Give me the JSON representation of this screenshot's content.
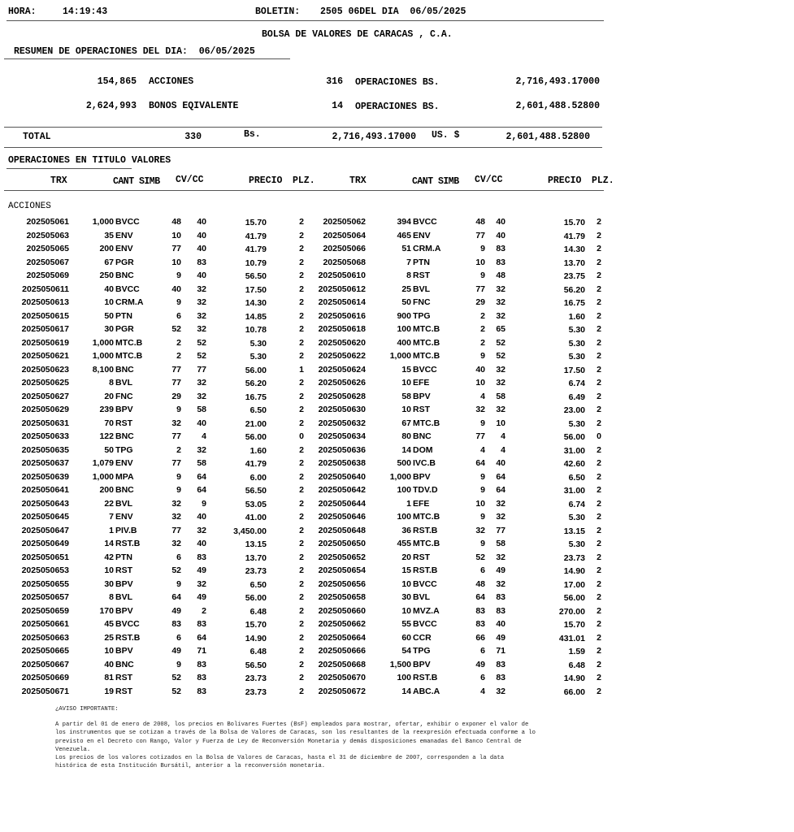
{
  "header": {
    "hora_label": "HORA:",
    "hora": "14:19:43",
    "boletin_label": "BOLETIN:",
    "boletin": "2505 06DEL DIA  06/05/2025"
  },
  "title": "BOLSA DE VALORES DE CARACAS , C.A.",
  "resumen": "RESUMEN DE OPERACIONES DEL DIA:  06/05/2025",
  "summary": [
    {
      "qty": "154,865",
      "type": "ACCIONES",
      "ops": "316",
      "ops_label": "OPERACIONES BS.",
      "amount": "2,716,493.17000"
    },
    {
      "qty": "2,624,993",
      "type": "BONOS EQIVALENTE",
      "ops": "14",
      "ops_label": "OPERACIONES BS.",
      "amount": "2,601,488.52800"
    }
  ],
  "total": {
    "label": "TOTAL",
    "ops": "330",
    "bs_label": "Bs.",
    "bs": "2,716,493.17000",
    "us_label": "US. $",
    "us": "2,601,488.52800"
  },
  "section": "OPERACIONES EN TITULO VALORES",
  "columns": {
    "trx": "TRX",
    "cant_simb": "CANT SIMB",
    "cv_cc": "CV/CC",
    "precio": "PRECIO",
    "plz": "PLZ."
  },
  "group": "ACCIONES",
  "rows": [
    [
      [
        "202505061",
        "1,000",
        "BVCC",
        "48",
        "40",
        "15.70",
        "2"
      ],
      [
        "202505062",
        "394",
        "BVCC",
        "48",
        "40",
        "15.70",
        "2"
      ]
    ],
    [
      [
        "202505063",
        "35",
        "ENV",
        "10",
        "40",
        "41.79",
        "2"
      ],
      [
        "202505064",
        "465",
        "ENV",
        "77",
        "40",
        "41.79",
        "2"
      ]
    ],
    [
      [
        "202505065",
        "200",
        "ENV",
        "77",
        "40",
        "41.79",
        "2"
      ],
      [
        "202505066",
        "51",
        "CRM.A",
        "9",
        "83",
        "14.30",
        "2"
      ]
    ],
    [
      [
        "202505067",
        "67",
        "PGR",
        "10",
        "83",
        "10.79",
        "2"
      ],
      [
        "202505068",
        "7",
        "PTN",
        "10",
        "83",
        "13.70",
        "2"
      ]
    ],
    [
      [
        "202505069",
        "250",
        "BNC",
        "9",
        "40",
        "56.50",
        "2"
      ],
      [
        "2025050610",
        "8",
        "RST",
        "9",
        "48",
        "23.75",
        "2"
      ]
    ],
    [
      [
        "2025050611",
        "40",
        "BVCC",
        "40",
        "32",
        "17.50",
        "2"
      ],
      [
        "2025050612",
        "25",
        "BVL",
        "77",
        "32",
        "56.20",
        "2"
      ]
    ],
    [
      [
        "2025050613",
        "10",
        "CRM.A",
        "9",
        "32",
        "14.30",
        "2"
      ],
      [
        "2025050614",
        "50",
        "FNC",
        "29",
        "32",
        "16.75",
        "2"
      ]
    ],
    [
      [
        "2025050615",
        "50",
        "PTN",
        "6",
        "32",
        "14.85",
        "2"
      ],
      [
        "2025050616",
        "900",
        "TPG",
        "2",
        "32",
        "1.60",
        "2"
      ]
    ],
    [
      [
        "2025050617",
        "30",
        "PGR",
        "52",
        "32",
        "10.78",
        "2"
      ],
      [
        "2025050618",
        "100",
        "MTC.B",
        "2",
        "65",
        "5.30",
        "2"
      ]
    ],
    [
      [
        "2025050619",
        "1,000",
        "MTC.B",
        "2",
        "52",
        "5.30",
        "2"
      ],
      [
        "2025050620",
        "400",
        "MTC.B",
        "2",
        "52",
        "5.30",
        "2"
      ]
    ],
    [
      [
        "2025050621",
        "1,000",
        "MTC.B",
        "2",
        "52",
        "5.30",
        "2"
      ],
      [
        "2025050622",
        "1,000",
        "MTC.B",
        "9",
        "52",
        "5.30",
        "2"
      ]
    ],
    [
      [
        "2025050623",
        "8,100",
        "BNC",
        "77",
        "77",
        "56.00",
        "1"
      ],
      [
        "2025050624",
        "15",
        "BVCC",
        "40",
        "32",
        "17.50",
        "2"
      ]
    ],
    [
      [
        "2025050625",
        "8",
        "BVL",
        "77",
        "32",
        "56.20",
        "2"
      ],
      [
        "2025050626",
        "10",
        "EFE",
        "10",
        "32",
        "6.74",
        "2"
      ]
    ],
    [
      [
        "2025050627",
        "20",
        "FNC",
        "29",
        "32",
        "16.75",
        "2"
      ],
      [
        "2025050628",
        "58",
        "BPV",
        "4",
        "58",
        "6.49",
        "2"
      ]
    ],
    [
      [
        "2025050629",
        "239",
        "BPV",
        "9",
        "58",
        "6.50",
        "2"
      ],
      [
        "2025050630",
        "10",
        "RST",
        "32",
        "32",
        "23.00",
        "2"
      ]
    ],
    [
      [
        "2025050631",
        "70",
        "RST",
        "32",
        "40",
        "21.00",
        "2"
      ],
      [
        "2025050632",
        "67",
        "MTC.B",
        "9",
        "10",
        "5.30",
        "2"
      ]
    ],
    [
      [
        "2025050633",
        "122",
        "BNC",
        "77",
        "4",
        "56.00",
        "0"
      ],
      [
        "2025050634",
        "80",
        "BNC",
        "77",
        "4",
        "56.00",
        "0"
      ]
    ],
    [
      [
        "2025050635",
        "50",
        "TPG",
        "2",
        "32",
        "1.60",
        "2"
      ],
      [
        "2025050636",
        "14",
        "DOM",
        "4",
        "4",
        "31.00",
        "2"
      ]
    ],
    [
      [
        "2025050637",
        "1,079",
        "ENV",
        "77",
        "58",
        "41.79",
        "2"
      ],
      [
        "2025050638",
        "500",
        "IVC.B",
        "64",
        "40",
        "42.60",
        "2"
      ]
    ],
    [
      [
        "2025050639",
        "1,000",
        "MPA",
        "9",
        "64",
        "6.00",
        "2"
      ],
      [
        "2025050640",
        "1,000",
        "BPV",
        "9",
        "64",
        "6.50",
        "2"
      ]
    ],
    [
      [
        "2025050641",
        "200",
        "BNC",
        "9",
        "64",
        "56.50",
        "2"
      ],
      [
        "2025050642",
        "100",
        "TDV.D",
        "9",
        "64",
        "31.00",
        "2"
      ]
    ],
    [
      [
        "2025050643",
        "22",
        "BVL",
        "32",
        "9",
        "53.05",
        "2"
      ],
      [
        "2025050644",
        "1",
        "EFE",
        "10",
        "32",
        "6.74",
        "2"
      ]
    ],
    [
      [
        "2025050645",
        "7",
        "ENV",
        "32",
        "40",
        "41.00",
        "2"
      ],
      [
        "2025050646",
        "100",
        "MTC.B",
        "9",
        "32",
        "5.30",
        "2"
      ]
    ],
    [
      [
        "2025050647",
        "1",
        "PIV.B",
        "77",
        "32",
        "3,450.00",
        "2"
      ],
      [
        "2025050648",
        "36",
        "RST.B",
        "32",
        "77",
        "13.15",
        "2"
      ]
    ],
    [
      [
        "2025050649",
        "14",
        "RST.B",
        "32",
        "40",
        "13.15",
        "2"
      ],
      [
        "2025050650",
        "455",
        "MTC.B",
        "9",
        "58",
        "5.30",
        "2"
      ]
    ],
    [
      [
        "2025050651",
        "42",
        "PTN",
        "6",
        "83",
        "13.70",
        "2"
      ],
      [
        "2025050652",
        "20",
        "RST",
        "52",
        "32",
        "23.73",
        "2"
      ]
    ],
    [
      [
        "2025050653",
        "10",
        "RST",
        "52",
        "49",
        "23.73",
        "2"
      ],
      [
        "2025050654",
        "15",
        "RST.B",
        "6",
        "49",
        "14.90",
        "2"
      ]
    ],
    [
      [
        "2025050655",
        "30",
        "BPV",
        "9",
        "32",
        "6.50",
        "2"
      ],
      [
        "2025050656",
        "10",
        "BVCC",
        "48",
        "32",
        "17.00",
        "2"
      ]
    ],
    [
      [
        "2025050657",
        "8",
        "BVL",
        "64",
        "49",
        "56.00",
        "2"
      ],
      [
        "2025050658",
        "30",
        "BVL",
        "64",
        "83",
        "56.00",
        "2"
      ]
    ],
    [
      [
        "2025050659",
        "170",
        "BPV",
        "49",
        "2",
        "6.48",
        "2"
      ],
      [
        "2025050660",
        "10",
        "MVZ.A",
        "83",
        "83",
        "270.00",
        "2"
      ]
    ],
    [
      [
        "2025050661",
        "45",
        "BVCC",
        "83",
        "83",
        "15.70",
        "2"
      ],
      [
        "2025050662",
        "55",
        "BVCC",
        "83",
        "40",
        "15.70",
        "2"
      ]
    ],
    [
      [
        "2025050663",
        "25",
        "RST.B",
        "6",
        "64",
        "14.90",
        "2"
      ],
      [
        "2025050664",
        "60",
        "CCR",
        "66",
        "49",
        "431.01",
        "2"
      ]
    ],
    [
      [
        "2025050665",
        "10",
        "BPV",
        "49",
        "71",
        "6.48",
        "2"
      ],
      [
        "2025050666",
        "54",
        "TPG",
        "6",
        "71",
        "1.59",
        "2"
      ]
    ],
    [
      [
        "2025050667",
        "40",
        "BNC",
        "9",
        "83",
        "56.50",
        "2"
      ],
      [
        "2025050668",
        "1,500",
        "BPV",
        "49",
        "83",
        "6.48",
        "2"
      ]
    ],
    [
      [
        "2025050669",
        "81",
        "RST",
        "52",
        "83",
        "23.73",
        "2"
      ],
      [
        "2025050670",
        "100",
        "RST.B",
        "6",
        "83",
        "14.90",
        "2"
      ]
    ],
    [
      [
        "2025050671",
        "19",
        "RST",
        "52",
        "83",
        "23.73",
        "2"
      ],
      [
        "2025050672",
        "14",
        "ABC.A",
        "4",
        "32",
        "66.00",
        "2"
      ]
    ]
  ],
  "notice": {
    "title": "¿AVISO IMPORTANTE:",
    "lines": [
      "A partir del 01 de enero de 2008, los precios en Bolívares Fuertes (BsF) empleados para mostrar, ofertar, exhibir o exponer el valor de",
      "los instrumentos que se cotizan a través de la Bolsa de Valores de Caracas, son los resultantes de la reexpresión efectuada conforme a lo",
      "previsto en el Decreto con Rango, Valor y Fuerza de Ley de Reconversión Monetaria y demás disposiciones emanadas del Banco Central de",
      "Venezuela.",
      "Los precios de los valores cotizados en la Bolsa de Valores de Caracas, hasta el 31 de diciembre de 2007, corresponden a la data",
      "histórica de esta Institución Bursátil, anterior a la reconversión monetaria."
    ]
  }
}
